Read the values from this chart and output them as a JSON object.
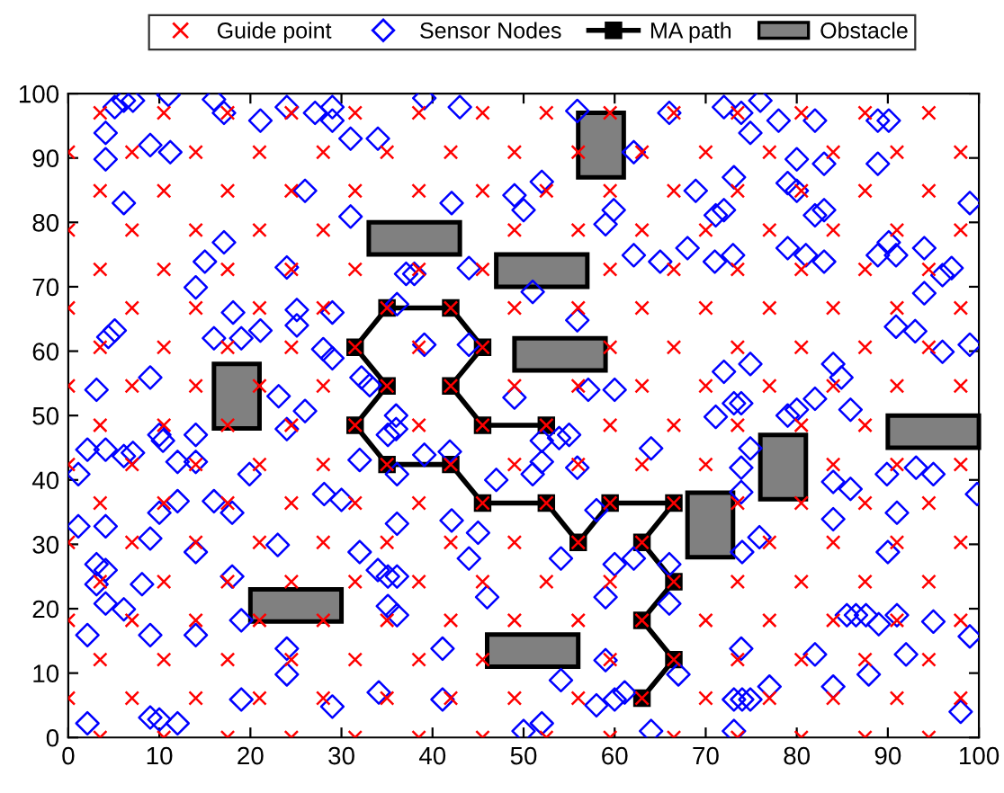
{
  "chart_data": {
    "type": "scatter",
    "xlim": [
      0,
      100
    ],
    "ylim": [
      0,
      100
    ],
    "xticks": [
      0,
      10,
      20,
      30,
      40,
      50,
      60,
      70,
      80,
      90,
      100
    ],
    "yticks": [
      0,
      10,
      20,
      30,
      40,
      50,
      60,
      70,
      80,
      90,
      100
    ],
    "grid": false,
    "legend": "top",
    "series": [
      {
        "name": "Guide point",
        "color": "#ff0000",
        "marker": "cross",
        "x": [
          3.5,
          10.5,
          17.5,
          24.5,
          31.5,
          38.5,
          45.5,
          52.5,
          59.5,
          66.5,
          73.5,
          80.5,
          87.5,
          94.5,
          0,
          7,
          14,
          21,
          28,
          35,
          42,
          49,
          56,
          63,
          70,
          77,
          84,
          91,
          98,
          3.5,
          10.5,
          17.5,
          24.5,
          31.5,
          38.5,
          45.5,
          59.5,
          66.5,
          73.5,
          80.5,
          87.5,
          94.5,
          0,
          7,
          14,
          21,
          28,
          35,
          42,
          49,
          56,
          63,
          70,
          77,
          84,
          91,
          98,
          3.5,
          10.5,
          17.5,
          24.5,
          31.5,
          38.5,
          45.5,
          52.5,
          59.5,
          66.5,
          73.5,
          80.5,
          87.5,
          94.5,
          0,
          7,
          14,
          21,
          28,
          35,
          42,
          49,
          56,
          63,
          77,
          84,
          91,
          98,
          3.5,
          10.5,
          17.5,
          24.5,
          31.5,
          38.5,
          45.5,
          52.5,
          59.5,
          66.5,
          73.5,
          80.5,
          87.5,
          94.5,
          0,
          7,
          14,
          21,
          28,
          35,
          42,
          49,
          56,
          63,
          70,
          84,
          91,
          98,
          3.5,
          10.5,
          17.5,
          24.5,
          31.5,
          38.5,
          45.5,
          52.5,
          59.5,
          66.5,
          73.5,
          80.5,
          87.5,
          0,
          7,
          14,
          21,
          28,
          35,
          42,
          49,
          56,
          63,
          70,
          77,
          84,
          91,
          98,
          3.5,
          10.5,
          17.5,
          24.5,
          31.5,
          38.5,
          45.5,
          59.5,
          66.5,
          73.5,
          80.5,
          87.5,
          94.5,
          0,
          7,
          14,
          21,
          28,
          35,
          42,
          49,
          56,
          63,
          70,
          77,
          84,
          91,
          98,
          3.5,
          10.5,
          17.5,
          24.5,
          31.5,
          38.5,
          45.5,
          59.5,
          66.5,
          73.5,
          80.5,
          87.5,
          94.5,
          0,
          7,
          14,
          21,
          28,
          49,
          56,
          63,
          70,
          77,
          84,
          91,
          98,
          3.5,
          10.5,
          17.5,
          24.5,
          31.5,
          38.5,
          45.5,
          52.5,
          59.5,
          66.5,
          73.5,
          80.5,
          87.5,
          94.5,
          0,
          7,
          14,
          21,
          28,
          35,
          42,
          49,
          56,
          63,
          70,
          77,
          84,
          91,
          98,
          3.5,
          10.5,
          17.5,
          24.5,
          31.5,
          38.5,
          45.5,
          52.5,
          59.5,
          66.5,
          73.5,
          80.5,
          87.5,
          94.5
        ],
        "values": [
          0,
          0,
          0,
          0,
          0,
          0,
          0,
          0,
          0,
          0,
          0,
          0,
          0,
          0,
          6.1,
          6.1,
          6.1,
          6.1,
          6.1,
          6.1,
          6.1,
          6.1,
          6.1,
          6.1,
          6.1,
          6.1,
          6.1,
          6.1,
          6.1,
          12.1,
          12.1,
          12.1,
          12.1,
          12.1,
          12.1,
          12.1,
          12.1,
          12.1,
          12.1,
          12.1,
          12.1,
          12.1,
          18.2,
          18.2,
          18.2,
          18.2,
          18.2,
          18.2,
          18.2,
          18.2,
          18.2,
          18.2,
          18.2,
          18.2,
          18.2,
          18.2,
          18.2,
          24.2,
          24.2,
          24.2,
          24.2,
          24.2,
          24.2,
          24.2,
          24.2,
          24.2,
          24.2,
          24.2,
          24.2,
          24.2,
          24.2,
          30.3,
          30.3,
          30.3,
          30.3,
          30.3,
          30.3,
          30.3,
          30.3,
          30.3,
          30.3,
          30.3,
          30.3,
          30.3,
          30.3,
          36.4,
          36.4,
          36.4,
          36.4,
          36.4,
          36.4,
          36.4,
          36.4,
          36.4,
          36.4,
          36.4,
          36.4,
          36.4,
          36.4,
          42.4,
          42.4,
          42.4,
          42.4,
          42.4,
          42.4,
          42.4,
          42.4,
          42.4,
          42.4,
          42.4,
          42.4,
          42.4,
          42.4,
          48.5,
          48.5,
          48.5,
          48.5,
          48.5,
          48.5,
          48.5,
          48.5,
          48.5,
          48.5,
          48.5,
          48.5,
          48.5,
          54.6,
          54.6,
          54.6,
          54.6,
          54.6,
          54.6,
          54.6,
          54.6,
          54.6,
          54.6,
          54.6,
          54.6,
          54.6,
          54.6,
          54.6,
          60.6,
          60.6,
          60.6,
          60.6,
          60.6,
          60.6,
          60.6,
          60.6,
          60.6,
          60.6,
          60.6,
          60.6,
          60.6,
          66.7,
          66.7,
          66.7,
          66.7,
          66.7,
          66.7,
          66.7,
          66.7,
          66.7,
          66.7,
          66.7,
          66.7,
          66.7,
          66.7,
          66.7,
          72.7,
          72.7,
          72.7,
          72.7,
          72.7,
          72.7,
          72.7,
          72.7,
          72.7,
          72.7,
          72.7,
          72.7,
          72.7,
          78.8,
          78.8,
          78.8,
          78.8,
          78.8,
          78.8,
          78.8,
          78.8,
          78.8,
          78.8,
          78.8,
          78.8,
          78.8,
          84.9,
          84.9,
          84.9,
          84.9,
          84.9,
          84.9,
          84.9,
          84.9,
          84.9,
          84.9,
          84.9,
          84.9,
          84.9,
          84.9,
          90.9,
          90.9,
          90.9,
          90.9,
          90.9,
          90.9,
          90.9,
          90.9,
          90.9,
          90.9,
          90.9,
          90.9,
          90.9,
          90.9,
          90.9,
          97.0,
          97.0,
          97.0,
          97.0,
          97.0,
          97.0,
          97.0,
          97.0,
          97.0,
          97.0,
          97.0,
          97.0,
          97.0,
          97.0
        ]
      },
      {
        "name": "Sensor Nodes",
        "color": "#0000ff",
        "marker": "diamond",
        "x": [
          5.1,
          6.1,
          7.1,
          11.0,
          16.0,
          17.1,
          21.1,
          24.0,
          27.1,
          29.0,
          29.0,
          4.1,
          4.1,
          9.0,
          11.2,
          31.0,
          34.0,
          6.1,
          26.0,
          31.0,
          17.1,
          15.0,
          14.0,
          24.0,
          37.1,
          38.0,
          44.0,
          18.1,
          25.1,
          25.1,
          29.0,
          16.0,
          19.0,
          21.1,
          4.4,
          5.1,
          28.0,
          29.0,
          39.1,
          44.0,
          9.0,
          3.1,
          23.1,
          32.2,
          33.1,
          36.1,
          39.1,
          43.0,
          42.1,
          55.9,
          66.0,
          72.0,
          73.9,
          76.0,
          74.9,
          78.0,
          82.0,
          88.9,
          90.1,
          62.1,
          80.0,
          83.0,
          88.9,
          52.0,
          49.0,
          50.0,
          68.9,
          73.1,
          79.0,
          80.0,
          59.9,
          59.0,
          71.1,
          72.0,
          82.0,
          83.0,
          99.0,
          62.1,
          65.0,
          68.0,
          71.0,
          73.0,
          79.0,
          81.0,
          83.0,
          90.1,
          88.9,
          90.9,
          94.0,
          96.0,
          97.0,
          94.0,
          51.0,
          55.9,
          90.9,
          93.0,
          96.0,
          99.0,
          72.0,
          74.9,
          84.0,
          84.9,
          49.0,
          57.1,
          60.0,
          26.0,
          24.0,
          2.1,
          4.1,
          1.1,
          6.1,
          7.1,
          10.0,
          10.4,
          14.0,
          12.0,
          14.0,
          19.9,
          16.0,
          18.0,
          12.0,
          10.0,
          4.1,
          1.1,
          9.0,
          14.0,
          23.0,
          3.1,
          4.1,
          3.1,
          8.1,
          4.1,
          6.1,
          18.0,
          2.1,
          9.0,
          14.0,
          19.0,
          24.0,
          24.0,
          19.0,
          29.0,
          34.1,
          9.0,
          10.0,
          12.0,
          2.1,
          28.1,
          30.0,
          32.0,
          36.0,
          35.1,
          36.0,
          39.1,
          41.9,
          36.1,
          36.1,
          42.1,
          45.0,
          44.0,
          46.0,
          47.0,
          32.0,
          34.0,
          35.1,
          36.1,
          35.1,
          36.1,
          41.1,
          41.1,
          71.1,
          73.1,
          73.9,
          79.0,
          80.0,
          82.0,
          85.9,
          55.0,
          53.9,
          52.0,
          52.0,
          51.0,
          55.9,
          64.0,
          74.9,
          73.9,
          73.9,
          84.0,
          85.9,
          89.9,
          93.1,
          95.0,
          91.0,
          84.0,
          99.8,
          54.1,
          60.0,
          62.1,
          66.0,
          59.0,
          66.0,
          75.9,
          74.0,
          90.0,
          58.0,
          67.0,
          85.5,
          86.5,
          87.6,
          89.0,
          91.0,
          95.0,
          99.0,
          92.0,
          87.9,
          82.0,
          73.9,
          59.0,
          54.1,
          58.0,
          60.0,
          61.1,
          77.0,
          73.1,
          74.0,
          74.9,
          84.0,
          98.0,
          50.0,
          52.0,
          64.0,
          73.1
        ],
        "values": [
          97.9,
          98.9,
          98.9,
          99.8,
          99.1,
          97.0,
          95.8,
          97.9,
          97.0,
          97.9,
          95.8,
          93.9,
          89.8,
          92.0,
          90.9,
          93.0,
          93.0,
          83.0,
          84.9,
          80.9,
          76.9,
          73.9,
          69.9,
          73.0,
          72.0,
          72.0,
          72.9,
          66.0,
          66.4,
          64.0,
          66.0,
          62.0,
          62.0,
          63.2,
          62.2,
          63.2,
          60.3,
          58.9,
          61.0,
          61.0,
          55.9,
          54.0,
          53.0,
          55.9,
          54.7,
          67.3,
          99.3,
          97.9,
          83.0,
          97.3,
          97.0,
          97.9,
          97.0,
          98.9,
          93.9,
          95.8,
          95.8,
          95.8,
          95.8,
          90.9,
          89.8,
          89.1,
          89.1,
          86.3,
          84.2,
          81.9,
          84.9,
          87.0,
          86.1,
          84.9,
          81.9,
          79.7,
          81.1,
          81.9,
          81.1,
          81.9,
          83.0,
          74.9,
          73.9,
          76.0,
          73.9,
          74.9,
          76.0,
          74.9,
          73.9,
          76.9,
          74.9,
          74.9,
          76.0,
          71.8,
          72.9,
          69.0,
          69.2,
          64.8,
          63.8,
          63.1,
          59.9,
          61.0,
          56.8,
          58.0,
          58.0,
          55.9,
          52.8,
          54.0,
          54.0,
          50.7,
          47.9,
          44.7,
          44.7,
          40.9,
          43.7,
          44.2,
          47.0,
          46.1,
          47.0,
          42.8,
          42.8,
          40.9,
          36.7,
          34.9,
          36.7,
          34.9,
          32.8,
          32.8,
          30.9,
          28.8,
          29.9,
          26.9,
          26.0,
          23.8,
          23.8,
          20.8,
          19.9,
          25.0,
          15.9,
          15.9,
          15.9,
          18.2,
          13.8,
          9.8,
          5.9,
          4.8,
          7.0,
          3.1,
          2.8,
          2.2,
          2.2,
          37.8,
          36.9,
          43.1,
          50.0,
          47.0,
          47.9,
          43.9,
          44.4,
          40.9,
          33.2,
          33.7,
          31.8,
          27.8,
          21.8,
          40.0,
          28.8,
          26.0,
          25.0,
          25.0,
          20.4,
          19.0,
          13.8,
          5.9,
          49.8,
          51.9,
          51.9,
          50.0,
          50.9,
          52.6,
          50.9,
          47.0,
          46.5,
          46.1,
          42.8,
          40.9,
          41.9,
          44.9,
          44.9,
          41.9,
          38.1,
          39.7,
          38.6,
          40.9,
          41.9,
          40.9,
          34.9,
          33.9,
          37.8,
          27.8,
          26.9,
          27.8,
          26.9,
          21.8,
          20.8,
          31.1,
          28.8,
          28.8,
          35.3,
          9.8,
          19.0,
          19.0,
          19.0,
          17.6,
          19.0,
          18.0,
          15.7,
          12.9,
          9.8,
          12.9,
          13.8,
          12.0,
          8.9,
          5.0,
          5.9,
          7.0,
          7.9,
          5.9,
          5.9,
          5.9,
          7.9,
          4.0,
          1.0,
          2.2,
          1.0,
          1.0
        ]
      },
      {
        "name": "MA path",
        "type": "line",
        "color": "#000000",
        "marker": "square",
        "line_style": "solid",
        "x": [
          63,
          66.5,
          63,
          66.5,
          63,
          66.5,
          59.5,
          56,
          52.5,
          45.5,
          42,
          35,
          31.5,
          35,
          31.5,
          35,
          42,
          45.5,
          42,
          45.5,
          52.5
        ],
        "values": [
          6.1,
          12.1,
          18.2,
          24.2,
          30.3,
          36.4,
          36.4,
          30.3,
          36.4,
          36.4,
          42.4,
          42.4,
          48.5,
          54.6,
          60.6,
          66.7,
          66.7,
          60.6,
          54.6,
          48.5,
          48.5
        ]
      },
      {
        "name": "Obstacle",
        "type": "area",
        "color": "#808080",
        "x": [
          56,
          61,
          61,
          56,
          56,
          null,
          33,
          43,
          43,
          33,
          33,
          null,
          47,
          57,
          57,
          47,
          47,
          null,
          49,
          59,
          59,
          49,
          49,
          null,
          16,
          21,
          21,
          16,
          16,
          null,
          90,
          100,
          100,
          90,
          90,
          null,
          76,
          81,
          81,
          76,
          76,
          null,
          68,
          73,
          73,
          68,
          68,
          null,
          20,
          30,
          30,
          20,
          20,
          null,
          46,
          56,
          56,
          46,
          46
        ],
        "values": [
          87,
          87,
          97,
          97,
          87,
          null,
          75,
          75,
          80,
          80,
          75,
          null,
          70,
          70,
          75,
          75,
          70,
          null,
          57,
          57,
          62,
          62,
          57,
          null,
          48,
          48,
          58,
          58,
          48,
          null,
          45,
          45,
          50,
          50,
          45,
          null,
          37,
          37,
          47,
          47,
          37,
          null,
          28,
          28,
          38,
          38,
          28,
          null,
          18,
          18,
          23,
          23,
          18,
          null,
          11,
          11,
          16,
          16,
          11
        ]
      }
    ]
  }
}
